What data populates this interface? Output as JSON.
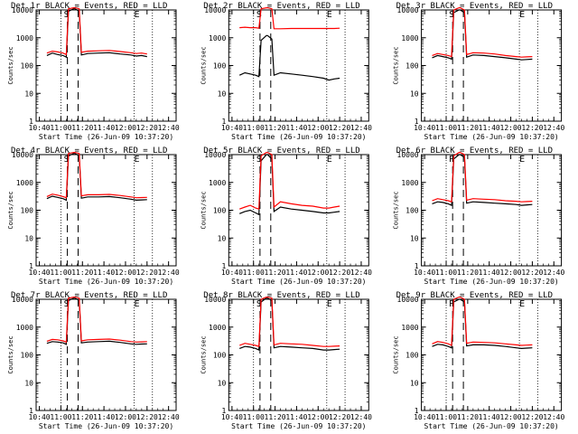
{
  "figure": {
    "line_colors": {
      "events": "#000000",
      "lld": "#ff0000"
    },
    "chart_data": [
      {
        "type": "line",
        "title": "Det 1r  BLACK = Events, RED = LLD",
        "xlabel": "Start Time (26-Jun-09 10:37:20)",
        "ylabel": "Counts/sec",
        "ylog": true,
        "ylim": [
          1,
          10000
        ],
        "x_ticks": [
          "10:40",
          "11:00",
          "11:20",
          "11:40",
          "12:00",
          "12:20",
          "12:40"
        ],
        "y_ticks": [
          "1",
          "10",
          "100",
          "1000",
          "10000"
        ],
        "markers": [
          "S",
          "E"
        ],
        "x": [
          "10:47",
          "10:52",
          "10:57",
          "11:02",
          "11:05",
          "11:07",
          "11:12",
          "11:13",
          "11:17",
          "11:19",
          "11:25",
          "11:35",
          "11:45",
          "11:55",
          "12:05",
          "12:10",
          "12:15",
          "12:20"
        ],
        "series": [
          {
            "name": "Events",
            "values": [
              230,
              280,
              250,
              230,
              200,
              9000,
              11000,
              11000,
              9000,
              240,
              270,
              280,
              290,
              260,
              240,
              220,
              230,
              210
            ]
          },
          {
            "name": "LLD",
            "values": [
              280,
              330,
              310,
              280,
              250,
              11000,
              12000,
              12000,
              11000,
              300,
              330,
              340,
              350,
              320,
              290,
              270,
              280,
              260
            ]
          }
        ]
      },
      {
        "type": "line",
        "title": "Det 2r  BLACK = Events, RED = LLD",
        "xlabel": "Start Time (26-Jun-09 10:37:20)",
        "ylabel": "Counts/sec",
        "ylog": true,
        "ylim": [
          1,
          10000
        ],
        "x_ticks": [
          "10:40",
          "11:00",
          "11:20",
          "11:40",
          "12:00",
          "12:20",
          "12:40"
        ],
        "y_ticks": [
          "1",
          "10",
          "100",
          "1000",
          "10000"
        ],
        "markers": [
          "S",
          "E"
        ],
        "x": [
          "10:47",
          "10:52",
          "10:57",
          "11:02",
          "11:05",
          "11:07",
          "11:12",
          "11:13",
          "11:17",
          "11:19",
          "11:25",
          "11:35",
          "11:45",
          "11:55",
          "12:05",
          "12:10",
          "12:15",
          "12:20"
        ],
        "series": [
          {
            "name": "Events",
            "values": [
              45,
              55,
              50,
              45,
              40,
              800,
              1200,
              1200,
              900,
              45,
              55,
              50,
              45,
              40,
              35,
              30,
              33,
              35
            ]
          },
          {
            "name": "LLD",
            "values": [
              2300,
              2400,
              2300,
              2300,
              2200,
              11000,
              12000,
              12000,
              11000,
              2100,
              2100,
              2150,
              2150,
              2150,
              2150,
              2150,
              2150,
              2200
            ]
          }
        ]
      },
      {
        "type": "line",
        "title": "Det 3r  BLACK = Events, RED = LLD",
        "xlabel": "Start Time (26-Jun-09 10:37:20)",
        "ylabel": "Counts/sec",
        "ylog": true,
        "ylim": [
          1,
          10000
        ],
        "x_ticks": [
          "10:40",
          "11:00",
          "11:20",
          "11:40",
          "12:00",
          "12:20",
          "12:40"
        ],
        "y_ticks": [
          "1",
          "10",
          "100",
          "1000",
          "10000"
        ],
        "markers": [
          "S",
          "E"
        ],
        "x": [
          "10:47",
          "10:52",
          "10:57",
          "11:02",
          "11:05",
          "11:07",
          "11:12",
          "11:13",
          "11:17",
          "11:19",
          "11:25",
          "11:35",
          "11:45",
          "11:55",
          "12:05",
          "12:10",
          "12:15",
          "12:20"
        ],
        "series": [
          {
            "name": "Events",
            "values": [
              190,
              230,
              210,
              190,
              170,
              8000,
              10000,
              10000,
              8000,
              200,
              240,
              230,
              210,
              190,
              170,
              160,
              165,
              170
            ]
          },
          {
            "name": "LLD",
            "values": [
              230,
              270,
              250,
              230,
              210,
              10000,
              12000,
              12000,
              10000,
              250,
              290,
              280,
              260,
              230,
              210,
              200,
              205,
              210
            ]
          }
        ]
      },
      {
        "type": "line",
        "title": "Det 4r  BLACK = Events, RED = LLD",
        "xlabel": "Start Time (26-Jun-09 10:37:20)",
        "ylabel": "Counts/sec",
        "ylog": true,
        "ylim": [
          1,
          10000
        ],
        "x_ticks": [
          "10:40",
          "11:00",
          "11:20",
          "11:40",
          "12:00",
          "12:20",
          "12:40"
        ],
        "y_ticks": [
          "1",
          "10",
          "100",
          "1000",
          "10000"
        ],
        "markers": [
          "S",
          "E"
        ],
        "x": [
          "10:47",
          "10:52",
          "10:57",
          "11:02",
          "11:05",
          "11:07",
          "11:12",
          "11:13",
          "11:17",
          "11:19",
          "11:25",
          "11:35",
          "11:45",
          "11:55",
          "12:05",
          "12:10",
          "12:15",
          "12:20"
        ],
        "series": [
          {
            "name": "Events",
            "values": [
              260,
              320,
              290,
              260,
              230,
              9000,
              11000,
              11000,
              9000,
              270,
              300,
              300,
              310,
              280,
              250,
              230,
              235,
              240
            ]
          },
          {
            "name": "LLD",
            "values": [
              310,
              380,
              350,
              310,
              280,
              11000,
              12000,
              12000,
              11000,
              330,
              360,
              360,
              370,
              340,
              300,
              280,
              285,
              290
            ]
          }
        ]
      },
      {
        "type": "line",
        "title": "Det 5r  BLACK = Events, RED = LLD",
        "xlabel": "Start Time (26-Jun-09 10:37:20)",
        "ylabel": "Counts/sec",
        "ylog": true,
        "ylim": [
          1,
          10000
        ],
        "x_ticks": [
          "10:40",
          "11:00",
          "11:20",
          "11:40",
          "12:00",
          "12:20",
          "12:40"
        ],
        "y_ticks": [
          "1",
          "10",
          "100",
          "1000",
          "10000"
        ],
        "markers": [
          "S",
          "E"
        ],
        "x": [
          "10:47",
          "10:52",
          "10:57",
          "11:02",
          "11:05",
          "11:07",
          "11:12",
          "11:13",
          "11:17",
          "11:19",
          "11:25",
          "11:35",
          "11:45",
          "11:55",
          "12:05",
          "12:10",
          "12:15",
          "12:20"
        ],
        "series": [
          {
            "name": "Events",
            "values": [
              75,
              90,
              100,
              80,
              70,
              6000,
              10000,
              10000,
              7000,
              90,
              130,
              110,
              100,
              90,
              80,
              80,
              85,
              90
            ]
          },
          {
            "name": "LLD",
            "values": [
              110,
              130,
              150,
              120,
              110,
              9000,
              12000,
              12000,
              10000,
              130,
              200,
              170,
              150,
              140,
              120,
              120,
              130,
              140
            ]
          }
        ]
      },
      {
        "type": "line",
        "title": "Det 6r  BLACK = Events, RED = LLD",
        "xlabel": "Start Time (26-Jun-09 10:37:20)",
        "ylabel": "Counts/sec",
        "ylog": true,
        "ylim": [
          1,
          10000
        ],
        "x_ticks": [
          "10:40",
          "11:00",
          "11:20",
          "11:40",
          "12:00",
          "12:20",
          "12:40"
        ],
        "y_ticks": [
          "1",
          "10",
          "100",
          "1000",
          "10000"
        ],
        "markers": [
          "P",
          "E"
        ],
        "x": [
          "10:47",
          "10:52",
          "10:57",
          "11:02",
          "11:05",
          "11:07",
          "11:12",
          "11:13",
          "11:17",
          "11:19",
          "11:25",
          "11:35",
          "11:45",
          "11:55",
          "12:05",
          "12:10",
          "12:15",
          "12:20"
        ],
        "series": [
          {
            "name": "Events",
            "values": [
              170,
              200,
              190,
              170,
              150,
              7000,
              10000,
              10000,
              8000,
              180,
              200,
              190,
              180,
              170,
              160,
              150,
              155,
              160
            ]
          },
          {
            "name": "LLD",
            "values": [
              220,
              260,
              240,
              220,
              200,
              9000,
              12000,
              12000,
              10000,
              230,
              260,
              250,
              240,
              220,
              210,
              200,
              205,
              210
            ]
          }
        ]
      },
      {
        "type": "line",
        "title": "Det 7r  BLACK = Events, RED = LLD",
        "xlabel": "Start Time (26-Jun-09 10:37:20)",
        "ylabel": "Counts/sec",
        "ylog": true,
        "ylim": [
          1,
          10000
        ],
        "x_ticks": [
          "10:40",
          "11:00",
          "11:20",
          "11:40",
          "12:00",
          "12:20",
          "12:40"
        ],
        "y_ticks": [
          "1",
          "10",
          "100",
          "1000",
          "10000"
        ],
        "markers": [
          "S",
          "E"
        ],
        "x": [
          "10:47",
          "10:52",
          "10:57",
          "11:02",
          "11:05",
          "11:07",
          "11:12",
          "11:13",
          "11:17",
          "11:19",
          "11:25",
          "11:35",
          "11:45",
          "11:55",
          "12:05",
          "12:10",
          "12:15",
          "12:20"
        ],
        "series": [
          {
            "name": "Events",
            "values": [
              260,
              300,
              290,
              270,
              240,
              9000,
              11000,
              11000,
              9000,
              270,
              290,
              300,
              310,
              280,
              250,
              240,
              245,
              250
            ]
          },
          {
            "name": "LLD",
            "values": [
              310,
              360,
              350,
              320,
              290,
              11000,
              12000,
              12000,
              11000,
              320,
              350,
              360,
              370,
              340,
              300,
              290,
              295,
              300
            ]
          }
        ]
      },
      {
        "type": "line",
        "title": "Det 8r  BLACK = Events, RED = LLD",
        "xlabel": "Start Time (26-Jun-09 10:37:20)",
        "ylabel": "Counts/sec",
        "ylog": true,
        "ylim": [
          1,
          10000
        ],
        "x_ticks": [
          "10:40",
          "11:00",
          "11:20",
          "11:40",
          "12:00",
          "12:20",
          "12:40"
        ],
        "y_ticks": [
          "1",
          "10",
          "100",
          "1000",
          "10000"
        ],
        "markers": [
          "S",
          "E"
        ],
        "x": [
          "10:47",
          "10:52",
          "10:57",
          "11:02",
          "11:05",
          "11:07",
          "11:12",
          "11:13",
          "11:17",
          "11:19",
          "11:25",
          "11:35",
          "11:45",
          "11:55",
          "12:05",
          "12:10",
          "12:15",
          "12:20"
        ],
        "series": [
          {
            "name": "Events",
            "values": [
              170,
              200,
              190,
              170,
              150,
              8000,
              11000,
              11000,
              9000,
              180,
              200,
              190,
              180,
              170,
              150,
              150,
              155,
              160
            ]
          },
          {
            "name": "LLD",
            "values": [
              220,
              260,
              240,
              220,
              200,
              10000,
              12000,
              12000,
              11000,
              230,
              260,
              250,
              240,
              220,
              200,
              200,
              205,
              210
            ]
          }
        ]
      },
      {
        "type": "line",
        "title": "Det 9r  BLACK = Events, RED = LLD",
        "xlabel": "Start Time (26-Jun-09 10:37:20)",
        "ylabel": "Counts/sec",
        "ylog": true,
        "ylim": [
          1,
          10000
        ],
        "x_ticks": [
          "10:40",
          "11:00",
          "11:20",
          "11:40",
          "12:00",
          "12:20",
          "12:40"
        ],
        "y_ticks": [
          "1",
          "10",
          "100",
          "1000",
          "10000"
        ],
        "markers": [
          "P",
          "E"
        ],
        "x": [
          "10:47",
          "10:52",
          "10:57",
          "11:02",
          "11:05",
          "11:07",
          "11:12",
          "11:13",
          "11:17",
          "11:19",
          "11:25",
          "11:35",
          "11:45",
          "11:55",
          "12:05",
          "12:10",
          "12:15",
          "12:20"
        ],
        "series": [
          {
            "name": "Events",
            "values": [
              200,
              240,
              230,
              200,
              180,
              8000,
              10000,
              10000,
              8000,
              210,
              230,
              230,
              220,
              200,
              180,
              170,
              175,
              180
            ]
          },
          {
            "name": "LLD",
            "values": [
              250,
              300,
              280,
              250,
              220,
              10000,
              12000,
              12000,
              10000,
              260,
              290,
              280,
              270,
              250,
              230,
              220,
              225,
              230
            ]
          }
        ]
      }
    ]
  }
}
